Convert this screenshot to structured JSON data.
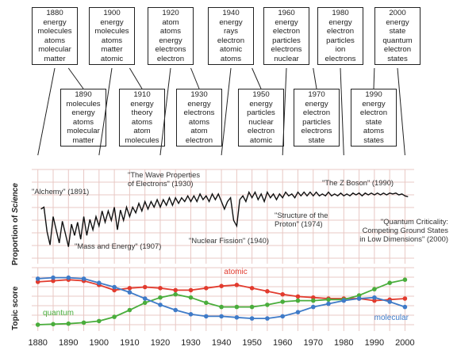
{
  "decades_top": [
    {
      "year": "1880",
      "words": [
        "energy",
        "molecules",
        "atoms",
        "molecular",
        "matter"
      ]
    },
    {
      "year": "1900",
      "words": [
        "energy",
        "molecules",
        "atoms",
        "matter",
        "atomic"
      ]
    },
    {
      "year": "1920",
      "words": [
        "atom",
        "atoms",
        "energy",
        "electrons",
        "electron"
      ]
    },
    {
      "year": "1940",
      "words": [
        "energy",
        "rays",
        "electron",
        "atomic",
        "atoms"
      ]
    },
    {
      "year": "1960",
      "words": [
        "energy",
        "electron",
        "particles",
        "electrons",
        "nuclear"
      ]
    },
    {
      "year": "1980",
      "words": [
        "energy",
        "electron",
        "particles",
        "ion",
        "electrons"
      ]
    },
    {
      "year": "2000",
      "words": [
        "energy",
        "state",
        "quantum",
        "electron",
        "states"
      ]
    }
  ],
  "decades_bottom": [
    {
      "year": "1890",
      "words": [
        "molecules",
        "energy",
        "atoms",
        "molecular",
        "matter"
      ]
    },
    {
      "year": "1910",
      "words": [
        "energy",
        "theory",
        "atoms",
        "atom",
        "molecules"
      ]
    },
    {
      "year": "1930",
      "words": [
        "energy",
        "electrons",
        "atoms",
        "atom",
        "electron"
      ]
    },
    {
      "year": "1950",
      "words": [
        "energy",
        "particles",
        "nuclear",
        "electron",
        "atomic"
      ]
    },
    {
      "year": "1970",
      "words": [
        "energy",
        "electron",
        "particles",
        "electrons",
        "state"
      ]
    },
    {
      "year": "1990",
      "words": [
        "energy",
        "electron",
        "state",
        "atoms",
        "states"
      ]
    }
  ],
  "axis_labels": {
    "proportion_prefix": "Proportion of ",
    "proportion_italic": "Science",
    "topic": "Topic score"
  },
  "chart_data": {
    "type": "line",
    "x_ticks": [
      "1880",
      "1890",
      "1900",
      "1910",
      "1920",
      "1930",
      "1940",
      "1950",
      "1960",
      "1970",
      "1980",
      "1990",
      "2000"
    ],
    "xlim": [
      1878,
      2003
    ],
    "proportion": {
      "ylim": [
        0,
        1
      ],
      "points": [
        [
          1881,
          0.58
        ],
        [
          1882,
          0.6
        ],
        [
          1883,
          0.34
        ],
        [
          1884,
          0.2
        ],
        [
          1885,
          0.5
        ],
        [
          1886,
          0.36
        ],
        [
          1887,
          0.22
        ],
        [
          1888,
          0.45
        ],
        [
          1889,
          0.32
        ],
        [
          1890,
          0.18
        ],
        [
          1891,
          0.42
        ],
        [
          1892,
          0.3
        ],
        [
          1893,
          0.44
        ],
        [
          1894,
          0.26
        ],
        [
          1895,
          0.5
        ],
        [
          1896,
          0.3
        ],
        [
          1897,
          0.47
        ],
        [
          1898,
          0.36
        ],
        [
          1899,
          0.5
        ],
        [
          1900,
          0.4
        ],
        [
          1901,
          0.56
        ],
        [
          1902,
          0.44
        ],
        [
          1903,
          0.56
        ],
        [
          1904,
          0.46
        ],
        [
          1905,
          0.6
        ],
        [
          1906,
          0.36
        ],
        [
          1907,
          0.57
        ],
        [
          1908,
          0.46
        ],
        [
          1909,
          0.6
        ],
        [
          1910,
          0.5
        ],
        [
          1911,
          0.6
        ],
        [
          1912,
          0.54
        ],
        [
          1913,
          0.64
        ],
        [
          1914,
          0.56
        ],
        [
          1915,
          0.66
        ],
        [
          1916,
          0.58
        ],
        [
          1917,
          0.66
        ],
        [
          1918,
          0.6
        ],
        [
          1919,
          0.68
        ],
        [
          1920,
          0.6
        ],
        [
          1921,
          0.68
        ],
        [
          1922,
          0.62
        ],
        [
          1923,
          0.7
        ],
        [
          1924,
          0.62
        ],
        [
          1925,
          0.7
        ],
        [
          1926,
          0.64
        ],
        [
          1927,
          0.7
        ],
        [
          1928,
          0.66
        ],
        [
          1929,
          0.72
        ],
        [
          1930,
          0.66
        ],
        [
          1931,
          0.72
        ],
        [
          1932,
          0.66
        ],
        [
          1933,
          0.74
        ],
        [
          1934,
          0.68
        ],
        [
          1935,
          0.72
        ],
        [
          1936,
          0.66
        ],
        [
          1937,
          0.74
        ],
        [
          1938,
          0.68
        ],
        [
          1939,
          0.74
        ],
        [
          1940,
          0.66
        ],
        [
          1941,
          0.58
        ],
        [
          1942,
          0.66
        ],
        [
          1943,
          0.7
        ],
        [
          1944,
          0.46
        ],
        [
          1945,
          0.4
        ],
        [
          1946,
          0.68
        ],
        [
          1947,
          0.72
        ],
        [
          1948,
          0.66
        ],
        [
          1949,
          0.76
        ],
        [
          1950,
          0.7
        ],
        [
          1951,
          0.76
        ],
        [
          1952,
          0.68
        ],
        [
          1953,
          0.74
        ],
        [
          1954,
          0.66
        ],
        [
          1955,
          0.76
        ],
        [
          1956,
          0.7
        ],
        [
          1957,
          0.74
        ],
        [
          1958,
          0.68
        ],
        [
          1959,
          0.74
        ],
        [
          1960,
          0.7
        ],
        [
          1961,
          0.76
        ],
        [
          1962,
          0.72
        ],
        [
          1963,
          0.74
        ],
        [
          1964,
          0.7
        ],
        [
          1965,
          0.76
        ],
        [
          1966,
          0.72
        ],
        [
          1967,
          0.76
        ],
        [
          1968,
          0.72
        ],
        [
          1969,
          0.76
        ],
        [
          1970,
          0.72
        ],
        [
          1971,
          0.76
        ],
        [
          1972,
          0.72
        ],
        [
          1973,
          0.74
        ],
        [
          1974,
          0.72
        ],
        [
          1975,
          0.76
        ],
        [
          1976,
          0.72
        ],
        [
          1977,
          0.74
        ],
        [
          1978,
          0.72
        ],
        [
          1979,
          0.75
        ],
        [
          1980,
          0.72
        ],
        [
          1981,
          0.74
        ],
        [
          1982,
          0.72
        ],
        [
          1983,
          0.75
        ],
        [
          1984,
          0.73
        ],
        [
          1985,
          0.75
        ],
        [
          1986,
          0.72
        ],
        [
          1987,
          0.75
        ],
        [
          1988,
          0.73
        ],
        [
          1989,
          0.75
        ],
        [
          1990,
          0.73
        ],
        [
          1991,
          0.75
        ],
        [
          1992,
          0.73
        ],
        [
          1993,
          0.75
        ],
        [
          1994,
          0.73
        ],
        [
          1995,
          0.75
        ],
        [
          1996,
          0.74
        ],
        [
          1997,
          0.75
        ],
        [
          1998,
          0.73
        ],
        [
          1999,
          0.74
        ],
        [
          2000,
          0.72
        ],
        [
          2001,
          0.71
        ]
      ],
      "annotations": [
        {
          "text": "\"Alchemy\" (1891)",
          "year": 1891
        },
        {
          "text": "\"The Wave Properties of Electrons\" (1930)",
          "year": 1930
        },
        {
          "text": "\"Mass and Energy\" (1907)",
          "year": 1907
        },
        {
          "text": "\"Nuclear Fission\" (1940)",
          "year": 1940
        },
        {
          "text": "\"Structure of the Proton\" (1974)",
          "year": 1974
        },
        {
          "text": "\"The Z Boson\" (1990)",
          "year": 1990
        },
        {
          "text": "\"Quantum Criticality: Competing Ground States in Low Dimensions\" (2000)",
          "year": 2000
        }
      ]
    },
    "topics": {
      "ylim": [
        0,
        1
      ],
      "series": [
        {
          "name": "atomic",
          "color": "#e23b2e",
          "x": [
            1880,
            1885,
            1890,
            1895,
            1900,
            1905,
            1910,
            1915,
            1920,
            1925,
            1930,
            1935,
            1940,
            1945,
            1950,
            1955,
            1960,
            1965,
            1970,
            1975,
            1980,
            1985,
            1990,
            1995,
            2000
          ],
          "values": [
            0.82,
            0.84,
            0.86,
            0.84,
            0.76,
            0.66,
            0.7,
            0.72,
            0.7,
            0.66,
            0.66,
            0.7,
            0.74,
            0.76,
            0.7,
            0.64,
            0.58,
            0.54,
            0.52,
            0.5,
            0.5,
            0.5,
            0.46,
            0.48,
            0.5
          ]
        },
        {
          "name": "quantum",
          "color": "#4aad3c",
          "x": [
            1880,
            1885,
            1890,
            1895,
            1900,
            1905,
            1910,
            1915,
            1920,
            1925,
            1930,
            1935,
            1940,
            1945,
            1950,
            1955,
            1960,
            1965,
            1970,
            1975,
            1980,
            1985,
            1990,
            1995,
            2000
          ],
          "values": [
            0.0,
            0.01,
            0.02,
            0.04,
            0.07,
            0.15,
            0.28,
            0.42,
            0.52,
            0.58,
            0.52,
            0.42,
            0.34,
            0.34,
            0.34,
            0.38,
            0.44,
            0.46,
            0.46,
            0.48,
            0.48,
            0.56,
            0.68,
            0.8,
            0.86
          ]
        },
        {
          "name": "molecular",
          "color": "#3f7bc8",
          "x": [
            1880,
            1885,
            1890,
            1895,
            1900,
            1905,
            1910,
            1915,
            1920,
            1925,
            1930,
            1935,
            1940,
            1945,
            1950,
            1955,
            1960,
            1965,
            1970,
            1975,
            1980,
            1985,
            1990,
            1995,
            2000
          ],
          "values": [
            0.88,
            0.9,
            0.9,
            0.88,
            0.8,
            0.72,
            0.62,
            0.5,
            0.38,
            0.28,
            0.2,
            0.16,
            0.16,
            0.14,
            0.12,
            0.12,
            0.16,
            0.24,
            0.34,
            0.4,
            0.46,
            0.5,
            0.52,
            0.44,
            0.34
          ]
        }
      ]
    }
  }
}
